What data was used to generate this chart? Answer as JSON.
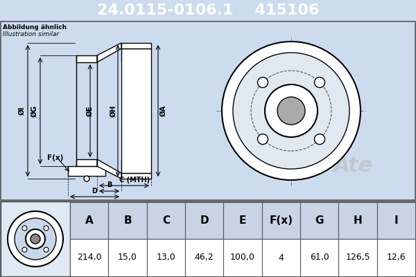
{
  "part_number": "24.0115-0106.1",
  "alt_number": "415106",
  "note_line1": "Abbildung ähnlich",
  "note_line2": "Illustration similar",
  "header_bg": "#0000cc",
  "header_text_color": "#ffffff",
  "body_bg": "#ccdcee",
  "table_bg": "#ffffff",
  "table_header_bg": "#c8d4e4",
  "table_row_bg": "#e8f0f8",
  "diagram_bg": "#ccdcee",
  "columns": [
    "A",
    "B",
    "C",
    "D",
    "E",
    "F(x)",
    "G",
    "H",
    "I"
  ],
  "values": [
    "214,0",
    "15,0",
    "13,0",
    "46,2",
    "100,0",
    "4",
    "61,0",
    "126,5",
    "12,6"
  ]
}
